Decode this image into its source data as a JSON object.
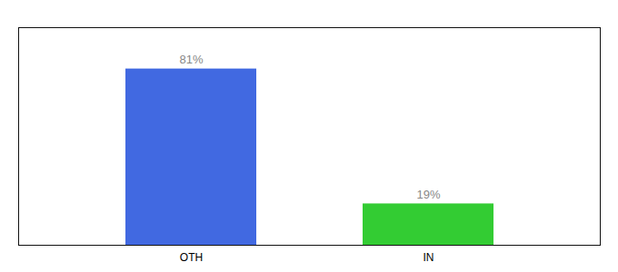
{
  "chart_data": {
    "type": "bar",
    "categories": [
      "OTH",
      "IN"
    ],
    "values": [
      81,
      19
    ],
    "value_labels": [
      "81%",
      "19%"
    ],
    "colors": [
      "#4169e1",
      "#33cc33"
    ],
    "ylim": [
      0,
      100
    ],
    "data_labels": true,
    "tick_labels": "x",
    "grid": false
  }
}
